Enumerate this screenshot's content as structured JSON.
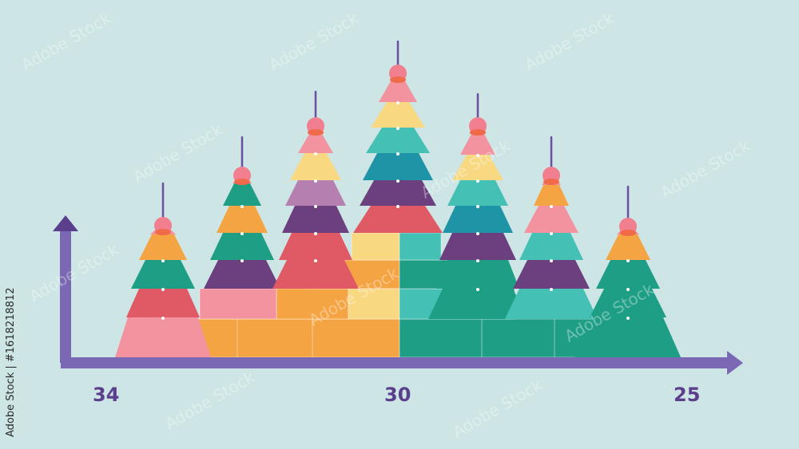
{
  "axis_labels": {
    "left": "34",
    "mid": "30",
    "right": "25"
  },
  "stock_id": "Adobe Stock | #1618218812",
  "watermark": "Adobe Stock",
  "colors": {
    "background": "#cde5e5",
    "axis": "#7a68b5",
    "label": "#5b3f8c",
    "pink": "#f3939f",
    "orange": "#f5a443",
    "red": "#e05a66",
    "purple": "#6c3f7e",
    "teal": "#1f9e86",
    "mint": "#44c0b4",
    "yellow": "#f8d881",
    "blue": "#1f94a6",
    "lilac": "#b57fb0",
    "ornament": "#f17f8f"
  }
}
